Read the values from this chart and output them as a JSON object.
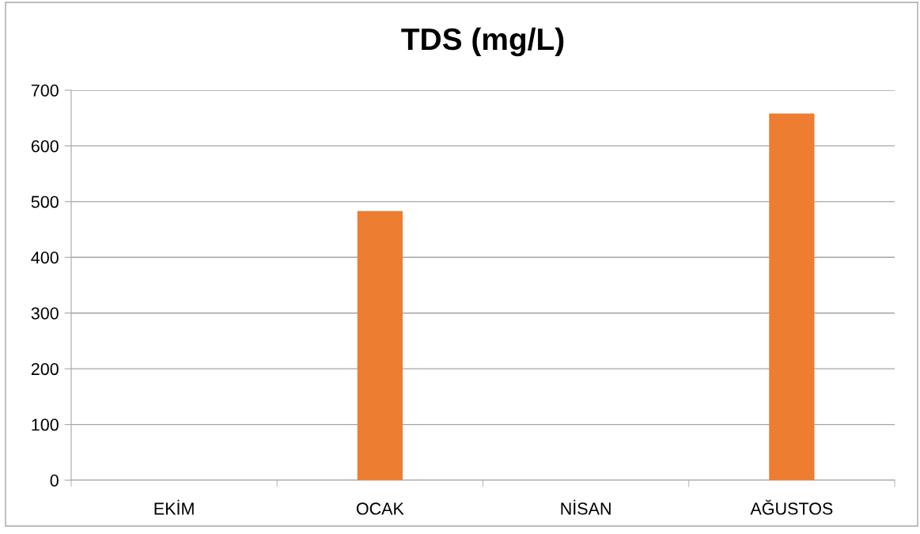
{
  "chart_data": {
    "type": "bar",
    "title": "TDS (mg/L)",
    "categories": [
      "EKİM",
      "OCAK",
      "NİSAN",
      "AĞUSTOS"
    ],
    "values": [
      null,
      483,
      null,
      658
    ],
    "color": "#ed7d31",
    "ylim": [
      0,
      700
    ],
    "yticks": [
      0,
      100,
      200,
      300,
      400,
      500,
      600,
      700
    ],
    "grid": "y"
  }
}
